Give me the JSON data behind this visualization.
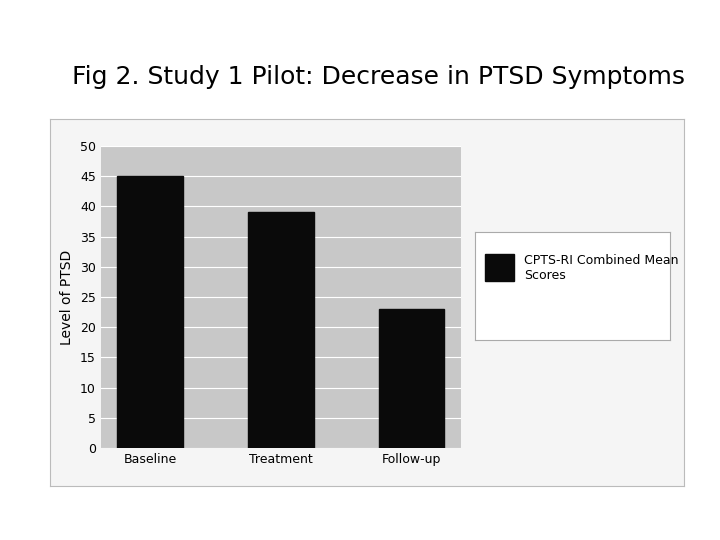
{
  "title": "Fig 2. Study 1 Pilot: Decrease in PTSD Symptoms",
  "categories": [
    "Baseline",
    "Treatment",
    "Follow-up"
  ],
  "values": [
    45,
    39,
    23
  ],
  "bar_color": "#0a0a0a",
  "ylabel": "Level of PTSD",
  "ylim": [
    0,
    50
  ],
  "yticks": [
    0,
    5,
    10,
    15,
    20,
    25,
    30,
    35,
    40,
    45,
    50
  ],
  "legend_label": "CPTS-RI Combined Mean\nScores",
  "plot_bg_color": "#c8c8c8",
  "fig_bg_color": "#ffffff",
  "title_fontsize": 18,
  "axis_fontsize": 10,
  "tick_fontsize": 9,
  "legend_fontsize": 9,
  "bar_width": 0.5,
  "frame_color": "#c8c8c8",
  "frame_edge_color": "#aaaaaa"
}
